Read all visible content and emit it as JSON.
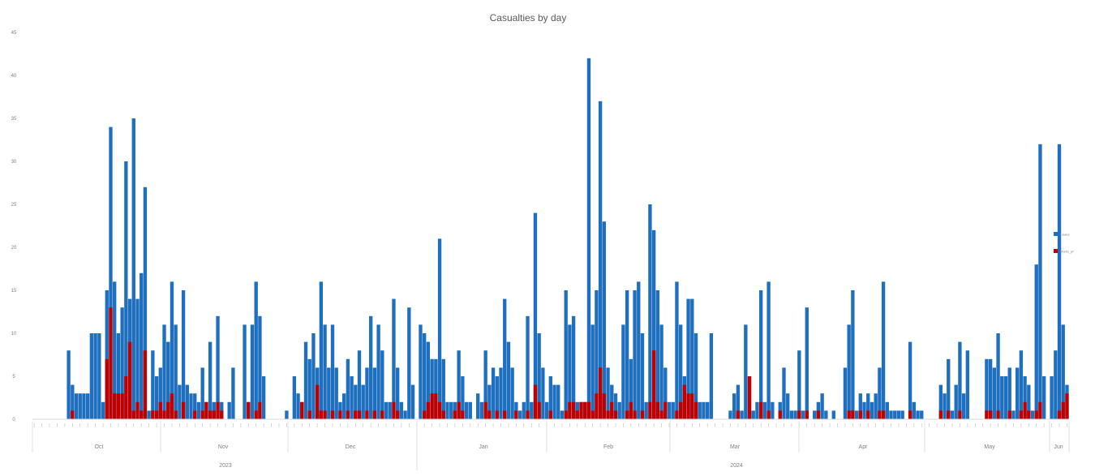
{
  "chart_data": {
    "type": "bar",
    "title": "Casualties by day",
    "xlabel": "",
    "ylabel": "",
    "ylim": [
      0,
      45
    ],
    "yticks": [
      0,
      5,
      10,
      15,
      20,
      25,
      30,
      35,
      40,
      45
    ],
    "grid": false,
    "legend_position": "right",
    "colors": {
      "series1": "#1f6fbf",
      "series2": "#c00000"
    },
    "legend": [
      "Lawes",
      "Marks_pf"
    ],
    "months": [
      "Oct",
      "Nov",
      "Dec",
      "Jan",
      "Feb",
      "Mar",
      "Apr",
      "May",
      "Jun"
    ],
    "years": [
      "2023",
      "2024"
    ],
    "series": [
      {
        "name": "Lawes",
        "values": [
          0,
          0,
          0,
          0,
          0,
          0,
          0,
          0,
          0,
          8,
          4,
          3,
          3,
          3,
          3,
          10,
          10,
          10,
          2,
          15,
          34,
          16,
          10,
          13,
          30,
          14,
          35,
          14,
          17,
          27,
          1,
          8,
          5,
          6,
          11,
          9,
          16,
          11,
          4,
          15,
          4,
          3,
          3,
          2,
          6,
          2,
          9,
          2,
          12,
          2,
          0,
          2,
          6,
          0,
          0,
          11,
          2,
          11,
          16,
          12,
          5,
          0,
          0,
          0,
          0,
          0,
          1,
          0,
          5,
          3,
          2,
          9,
          7,
          10,
          6,
          16,
          11,
          6,
          11,
          6,
          2,
          3,
          7,
          5,
          4,
          8,
          4,
          6,
          12,
          6,
          11,
          8,
          2,
          2,
          14,
          6,
          2,
          1,
          13,
          4,
          0,
          11,
          10,
          9,
          7,
          7,
          21,
          7,
          2,
          2,
          2,
          8,
          5,
          2,
          2,
          0,
          3,
          2,
          8,
          4,
          6,
          5,
          6,
          14,
          9,
          6,
          2,
          1,
          2,
          12,
          2,
          24,
          10,
          6,
          2,
          5,
          4,
          4,
          1,
          15,
          11,
          12,
          2,
          2,
          2,
          42,
          11,
          15,
          37,
          23,
          6,
          4,
          3,
          2,
          11,
          15,
          7,
          15,
          16,
          10,
          2,
          25,
          22,
          15,
          11,
          6,
          2,
          2,
          16,
          11,
          5,
          14,
          14,
          10,
          2,
          2,
          2,
          10,
          0,
          0,
          0,
          0,
          1,
          3,
          4,
          1,
          11,
          5,
          1,
          2,
          15,
          2,
          16,
          2,
          0,
          2,
          6,
          3,
          1,
          1,
          8,
          1,
          13,
          0,
          1,
          2,
          3,
          1,
          0,
          1,
          0,
          0,
          6,
          11,
          15,
          1,
          3,
          2,
          3,
          2,
          3,
          6,
          16,
          2,
          1,
          1,
          1,
          1,
          0,
          9,
          2,
          1,
          1,
          0,
          0,
          0,
          0,
          4,
          3,
          7,
          1,
          4,
          9,
          3,
          8,
          0,
          0,
          0,
          0,
          7,
          7,
          6,
          10,
          5,
          5,
          6,
          1,
          6,
          8,
          5,
          4,
          1,
          18,
          32,
          5,
          0,
          5,
          8,
          32,
          11,
          4
        ]
      },
      {
        "name": "Marks_pf",
        "values": [
          0,
          0,
          0,
          0,
          0,
          0,
          0,
          0,
          0,
          0,
          1,
          0,
          0,
          0,
          0,
          0,
          0,
          0,
          0,
          7,
          13,
          3,
          3,
          3,
          5,
          9,
          1,
          2,
          1,
          8,
          0,
          1,
          1,
          2,
          1,
          2,
          3,
          1,
          0,
          2,
          0,
          0,
          1,
          0,
          1,
          2,
          1,
          1,
          2,
          1,
          0,
          0,
          0,
          0,
          0,
          0,
          2,
          0,
          1,
          2,
          0,
          0,
          0,
          0,
          0,
          0,
          0,
          0,
          0,
          0,
          2,
          0,
          1,
          0,
          4,
          1,
          1,
          0,
          1,
          0,
          1,
          0,
          1,
          0,
          1,
          1,
          0,
          1,
          0,
          1,
          0,
          1,
          0,
          0,
          2,
          1,
          0,
          0,
          0,
          0,
          0,
          0,
          1,
          2,
          3,
          3,
          2,
          1,
          0,
          0,
          1,
          2,
          1,
          0,
          0,
          0,
          0,
          0,
          2,
          1,
          0,
          1,
          0,
          1,
          0,
          0,
          1,
          0,
          0,
          1,
          0,
          4,
          2,
          0,
          0,
          1,
          0,
          0,
          0,
          1,
          2,
          2,
          1,
          2,
          2,
          2,
          1,
          3,
          6,
          3,
          1,
          2,
          1,
          0,
          0,
          1,
          2,
          1,
          0,
          1,
          0,
          2,
          8,
          2,
          1,
          2,
          0,
          0,
          1,
          2,
          4,
          3,
          3,
          2,
          0,
          0,
          0,
          0,
          0,
          0,
          0,
          0,
          0,
          0,
          1,
          0,
          0,
          5,
          0,
          0,
          2,
          0,
          1,
          0,
          0,
          1,
          0,
          0,
          0,
          0,
          1,
          0,
          1,
          0,
          0,
          1,
          0,
          0,
          0,
          0,
          0,
          0,
          0,
          1,
          1,
          0,
          1,
          0,
          1,
          0,
          0,
          1,
          1,
          0,
          0,
          0,
          0,
          0,
          0,
          1,
          0,
          0,
          0,
          0,
          0,
          0,
          0,
          1,
          0,
          1,
          0,
          0,
          1,
          0,
          0,
          0,
          0,
          0,
          0,
          1,
          1,
          0,
          1,
          0,
          0,
          1,
          0,
          0,
          1,
          2,
          1,
          0,
          1,
          2,
          0,
          0,
          0,
          0,
          1,
          2,
          3,
          1
        ]
      }
    ]
  }
}
